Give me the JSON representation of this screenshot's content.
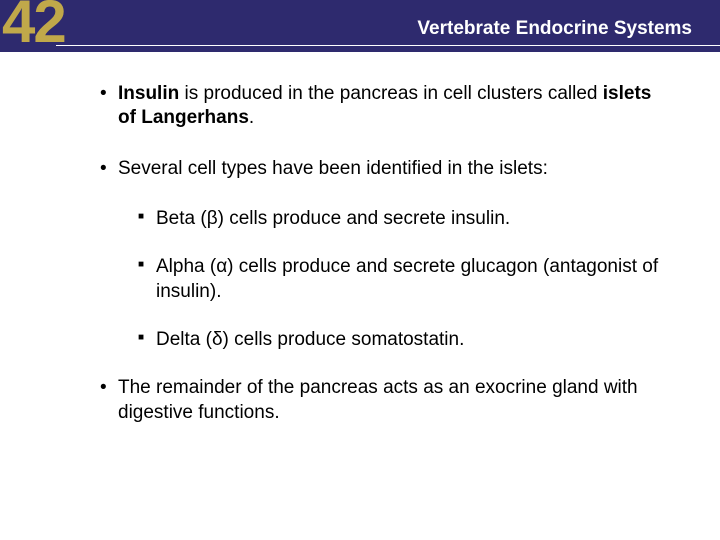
{
  "header": {
    "chapter_number": "42",
    "title": "Vertebrate Endocrine Systems",
    "bg_color": "#2e2a6e",
    "number_color": "#c0a84a",
    "title_color": "#ffffff"
  },
  "content": {
    "text_color": "#000000",
    "fontsize": 19,
    "bullets": [
      {
        "level": 1,
        "parts": [
          {
            "text": "Insulin",
            "bold": true
          },
          {
            "text": " is produced in the pancreas in cell clusters called ",
            "bold": false
          },
          {
            "text": "islets of Langerhans",
            "bold": true
          },
          {
            "text": ".",
            "bold": false
          }
        ]
      },
      {
        "level": 1,
        "parts": [
          {
            "text": "Several cell types have been identified in the islets:",
            "bold": false
          }
        ]
      },
      {
        "level": 2,
        "parts": [
          {
            "text": "Beta (β) cells produce and secrete insulin.",
            "bold": false
          }
        ]
      },
      {
        "level": 2,
        "parts": [
          {
            "text": "Alpha (α) cells produce and secrete glucagon (antagonist of insulin).",
            "bold": false
          }
        ]
      },
      {
        "level": 2,
        "parts": [
          {
            "text": "Delta (δ) cells produce somatostatin.",
            "bold": false
          }
        ]
      },
      {
        "level": 1,
        "parts": [
          {
            "text": "The remainder of the pancreas acts as an exocrine gland with digestive functions.",
            "bold": false
          }
        ]
      }
    ]
  }
}
